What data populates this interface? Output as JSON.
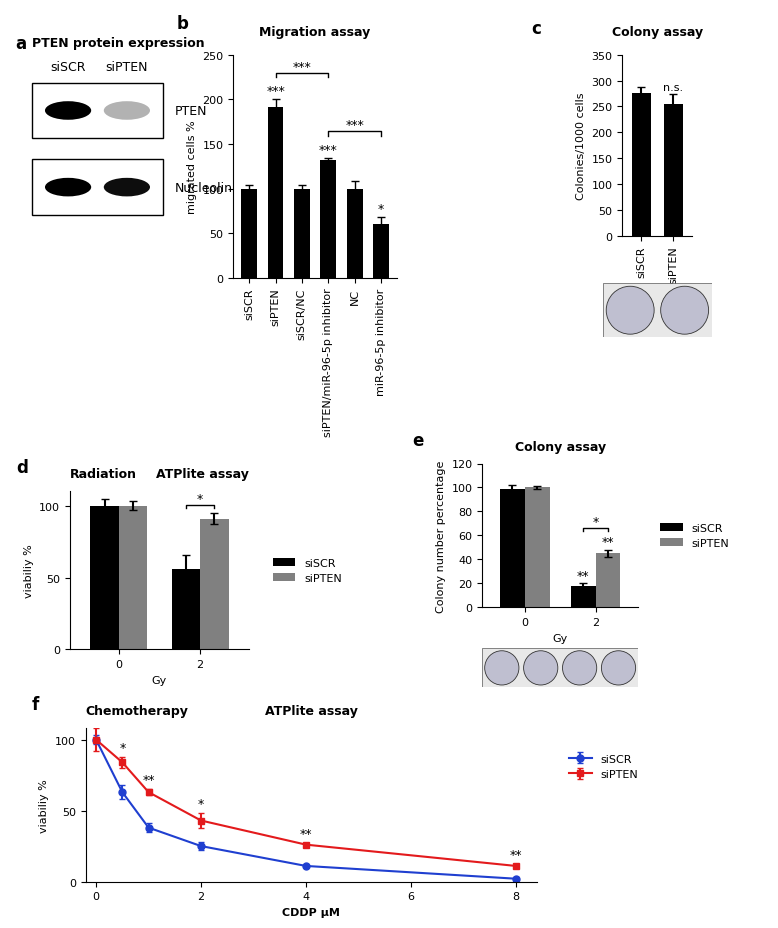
{
  "blot": {
    "panel": "a",
    "title": "PTEN protein expression",
    "lanes": [
      "siSCR",
      "siPTEN"
    ],
    "bands": [
      {
        "label": "PTEN"
      },
      {
        "label": "Nucleolin"
      }
    ]
  },
  "chart_data": [
    {
      "panel": "b",
      "type": "bar",
      "title": "Migration assay",
      "y_label": "migrated cells %",
      "categories": [
        "siSCR",
        "siPTEN",
        "siSCR/NC",
        "siPTEN/miR-96-5p inhibitor",
        "NC",
        "miR-96-5p inhibitor"
      ],
      "values": [
        100,
        191,
        100,
        132,
        100,
        60
      ],
      "errors": [
        4,
        9,
        4,
        2,
        8,
        8
      ],
      "color": "#000000",
      "ylim": [
        0,
        250
      ],
      "yticks": [
        0,
        50,
        100,
        150,
        200,
        250
      ],
      "marks": [
        {
          "category": "siPTEN",
          "text": "***"
        },
        {
          "category": "siPTEN/miR-96-5p inhibitor",
          "text": "***"
        },
        {
          "category": "miR-96-5p inhibitor",
          "text": "*"
        }
      ],
      "brackets": [
        {
          "from": "siPTEN",
          "to": "siPTEN/miR-96-5p inhibitor",
          "text": "***"
        },
        {
          "from": "siPTEN/miR-96-5p inhibitor",
          "to": "miR-96-5p inhibitor",
          "text": "***"
        }
      ]
    },
    {
      "panel": "c",
      "type": "bar",
      "title": "Colony assay",
      "y_label": "Colonies/1000 cells",
      "categories": [
        "siSCR",
        "siPTEN"
      ],
      "values": [
        276,
        254
      ],
      "errors": [
        11,
        20
      ],
      "color": "#000000",
      "ylim": [
        0,
        350
      ],
      "yticks": [
        0,
        50,
        100,
        150,
        200,
        250,
        300,
        350
      ],
      "marks": [
        {
          "category": "siPTEN",
          "text": "n.s."
        }
      ]
    },
    {
      "panel": "d",
      "type": "bar",
      "title": "Radiation",
      "subtitle": "ATPlite assay",
      "x_label": "Gy",
      "y_label": "viabiliy %",
      "categories": [
        "0",
        "2"
      ],
      "series": [
        {
          "name": "siSCR",
          "color": "#000000",
          "values": [
            100,
            56
          ],
          "errors": [
            5,
            10
          ]
        },
        {
          "name": "siPTEN",
          "color": "#808080",
          "values": [
            100,
            91
          ],
          "errors": [
            3,
            4
          ]
        }
      ],
      "ylim": [
        0,
        110
      ],
      "yticks": [
        0,
        50,
        100
      ],
      "legend": "center left",
      "brackets": [
        {
          "category": "2",
          "text": "*"
        }
      ]
    },
    {
      "panel": "e",
      "type": "bar",
      "title": "Colony assay",
      "x_label": "Gy",
      "y_label": "Colony number percentage",
      "categories": [
        "0",
        "2"
      ],
      "series": [
        {
          "name": "siSCR",
          "color": "#000000",
          "values": [
            99,
            18
          ],
          "errors": [
            3,
            2
          ]
        },
        {
          "name": "siPTEN",
          "color": "#808080",
          "values": [
            100,
            45
          ],
          "errors": [
            1,
            3
          ]
        }
      ],
      "ylim": [
        0,
        120
      ],
      "yticks": [
        0,
        20,
        40,
        60,
        80,
        100,
        120
      ],
      "legend": "center left",
      "marks": [
        {
          "category": "2",
          "series": "siSCR",
          "text": "**"
        },
        {
          "category": "2",
          "series": "siPTEN",
          "text": "**"
        }
      ],
      "brackets": [
        {
          "category": "2",
          "text": "*"
        }
      ]
    },
    {
      "panel": "f",
      "type": "line",
      "title": "Chemotherapy",
      "subtitle": "ATPlite assay",
      "x_label": "CDDP µM",
      "y_label": "viabiliy %",
      "x": [
        0,
        0.5,
        1,
        2,
        4,
        8
      ],
      "series": [
        {
          "name": "siSCR",
          "color": "#1f3fd0",
          "marker": "circle",
          "values": [
            100,
            63,
            38,
            25,
            11,
            2
          ],
          "errors": [
            3,
            5,
            3,
            3,
            1,
            1
          ]
        },
        {
          "name": "siPTEN",
          "color": "#e31a1c",
          "marker": "square",
          "values": [
            100,
            84,
            63,
            43,
            26,
            11
          ],
          "errors": [
            8,
            4,
            2,
            5,
            1,
            1
          ]
        }
      ],
      "xlim": [
        -0.2,
        8.4
      ],
      "xticks": [
        0,
        2,
        4,
        6,
        8
      ],
      "ylim": [
        0,
        108
      ],
      "yticks": [
        0,
        50,
        100
      ],
      "legend": "center left",
      "marks": [
        {
          "x": 0.5,
          "text": "*"
        },
        {
          "x": 1,
          "text": "**"
        },
        {
          "x": 2,
          "text": "*"
        },
        {
          "x": 4,
          "text": "**"
        },
        {
          "x": 8,
          "text": "**"
        }
      ]
    }
  ]
}
